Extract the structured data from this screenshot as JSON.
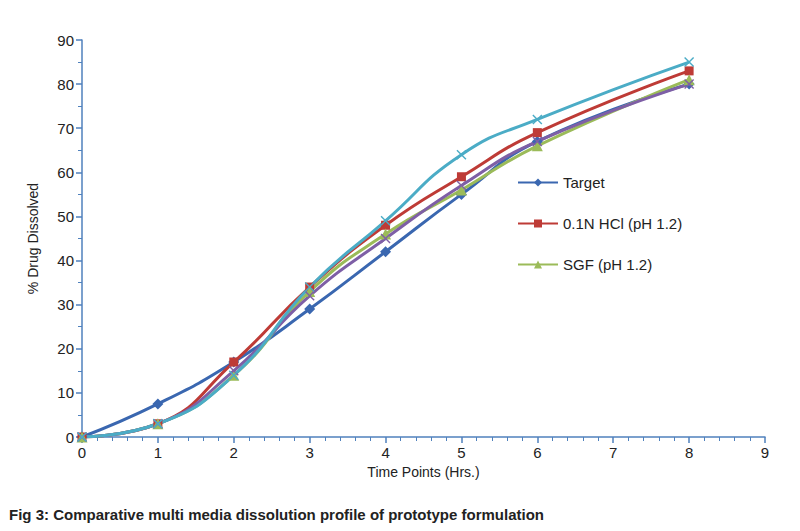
{
  "chart_data": {
    "type": "line",
    "title": "Fig 3: Comparative multi media dissolution profile of prototype formulation",
    "x_label": "Time Points (Hrs.)",
    "y_label": "% Drug Dissolved",
    "x": [
      0,
      1,
      2,
      3,
      4,
      5,
      6,
      8
    ],
    "xlim": [
      0,
      9
    ],
    "xticks": [
      0,
      1,
      2,
      3,
      4,
      5,
      6,
      7,
      8,
      9
    ],
    "ylim": [
      0,
      90
    ],
    "yticks": [
      0,
      10,
      20,
      30,
      40,
      50,
      60,
      70,
      80,
      90
    ],
    "grid": false,
    "legend": "right",
    "series": [
      {
        "name": "Target",
        "color": "#3a67b0",
        "marker": "diamond",
        "values": [
          0,
          7.5,
          17,
          29,
          42,
          55,
          67,
          80
        ]
      },
      {
        "name": "0.1N HCl (pH 1.2)",
        "color": "#be3b36",
        "marker": "square",
        "values": [
          0,
          3,
          17,
          34,
          48,
          59,
          69,
          83
        ]
      },
      {
        "name": "SGF (pH 1.2)",
        "color": "#9bbb59",
        "marker": "triangle",
        "values": [
          0,
          3,
          14,
          33,
          46,
          56,
          66,
          81
        ]
      },
      {
        "color": "#7e5fa6",
        "marker": "x",
        "values": [
          0,
          3,
          15,
          32,
          45,
          57,
          67,
          80
        ]
      },
      {
        "color": "#4bacc6",
        "marker": "x",
        "values": [
          0,
          3,
          14,
          34,
          49,
          64,
          72,
          85
        ]
      }
    ]
  }
}
